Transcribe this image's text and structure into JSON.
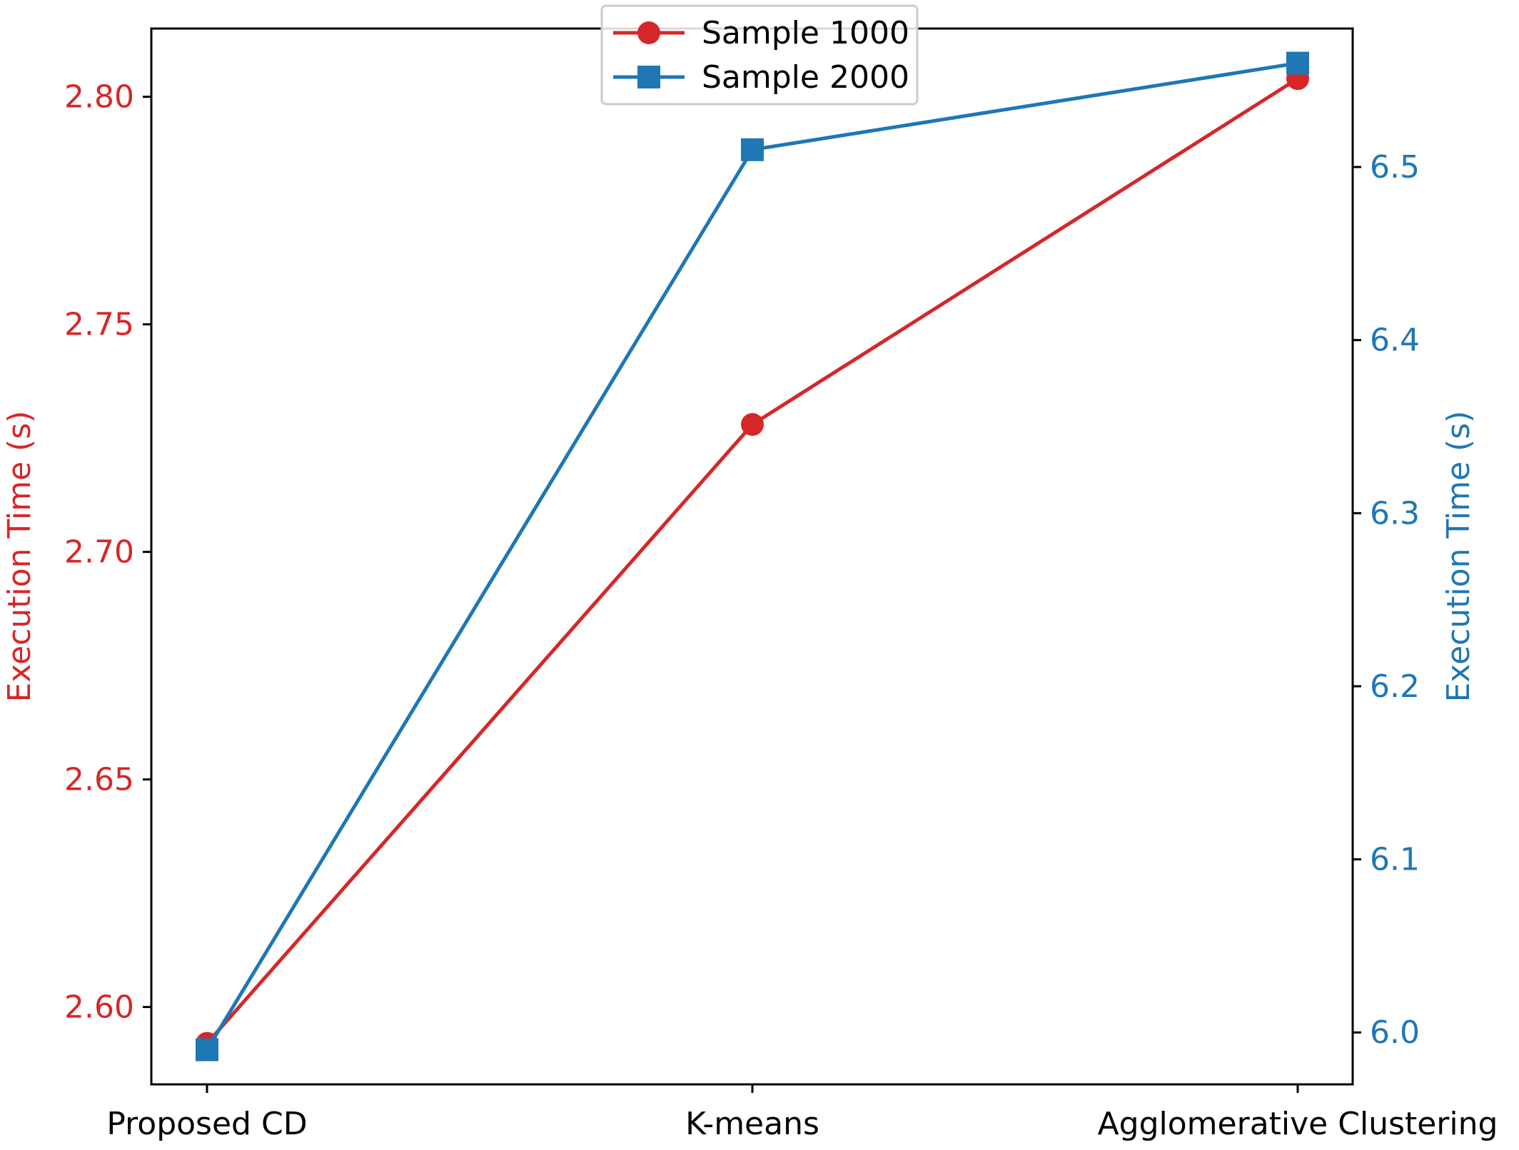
{
  "chart_data": {
    "type": "line",
    "categories": [
      "Proposed CD",
      "K-means",
      "Agglomerative Clustering"
    ],
    "y_left": {
      "label": "Execution Time (s)",
      "color": "#d62728",
      "range": [
        2.583,
        2.815
      ],
      "ticks": [
        2.6,
        2.65,
        2.7,
        2.75,
        2.8
      ],
      "tick_labels": [
        "2.60",
        "2.65",
        "2.70",
        "2.75",
        "2.80"
      ]
    },
    "y_right": {
      "label": "Execution Time (s)",
      "color": "#1f77b4",
      "range": [
        5.97,
        6.58
      ],
      "ticks": [
        6.0,
        6.1,
        6.2,
        6.3,
        6.4,
        6.5
      ],
      "tick_labels": [
        "6.0",
        "6.1",
        "6.2",
        "6.3",
        "6.4",
        "6.5"
      ]
    },
    "series": [
      {
        "name": "Sample 1000",
        "axis": "left",
        "color": "#d62728",
        "marker": "circle",
        "values": [
          2.592,
          2.728,
          2.804
        ]
      },
      {
        "name": "Sample 2000",
        "axis": "right",
        "color": "#1f77b4",
        "marker": "square",
        "values": [
          5.99,
          6.51,
          6.56
        ]
      }
    ],
    "legend": {
      "position": "top-center",
      "entries": [
        "Sample 1000",
        "Sample 2000"
      ]
    },
    "grid": false
  }
}
